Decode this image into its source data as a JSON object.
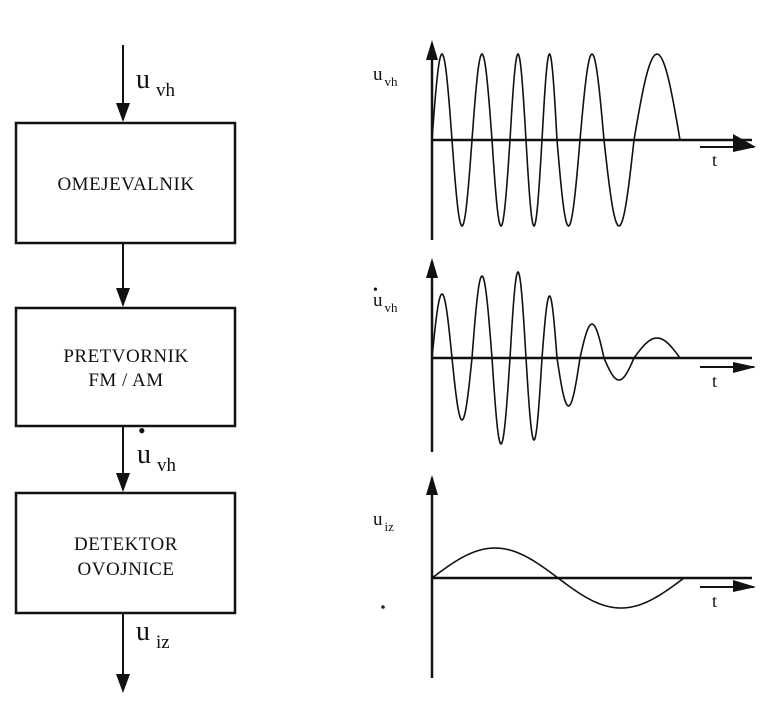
{
  "blocks": {
    "limiter": "OMEJEVALNIK",
    "converter_line1": "PRETVORNIK",
    "converter_line2": "FM / AM",
    "detector_line1": "DETEKTOR",
    "detector_line2": "OVOJNICE"
  },
  "signals": {
    "input": {
      "main": "u",
      "sub": "vh",
      "dot": false
    },
    "derivative": {
      "main": "u",
      "sub": "vh",
      "dot": true
    },
    "output": {
      "main": "u",
      "sub": "iz",
      "dot": false
    }
  },
  "plots": {
    "top": {
      "y_label": "u",
      "y_sub": "vh",
      "dot": false,
      "x_label": "t"
    },
    "middle": {
      "y_label": "u",
      "y_sub": "vh",
      "dot": true,
      "x_label": "t"
    },
    "bottom": {
      "y_label": "u",
      "y_sub": "iz",
      "dot": false,
      "x_label": "t"
    }
  }
}
